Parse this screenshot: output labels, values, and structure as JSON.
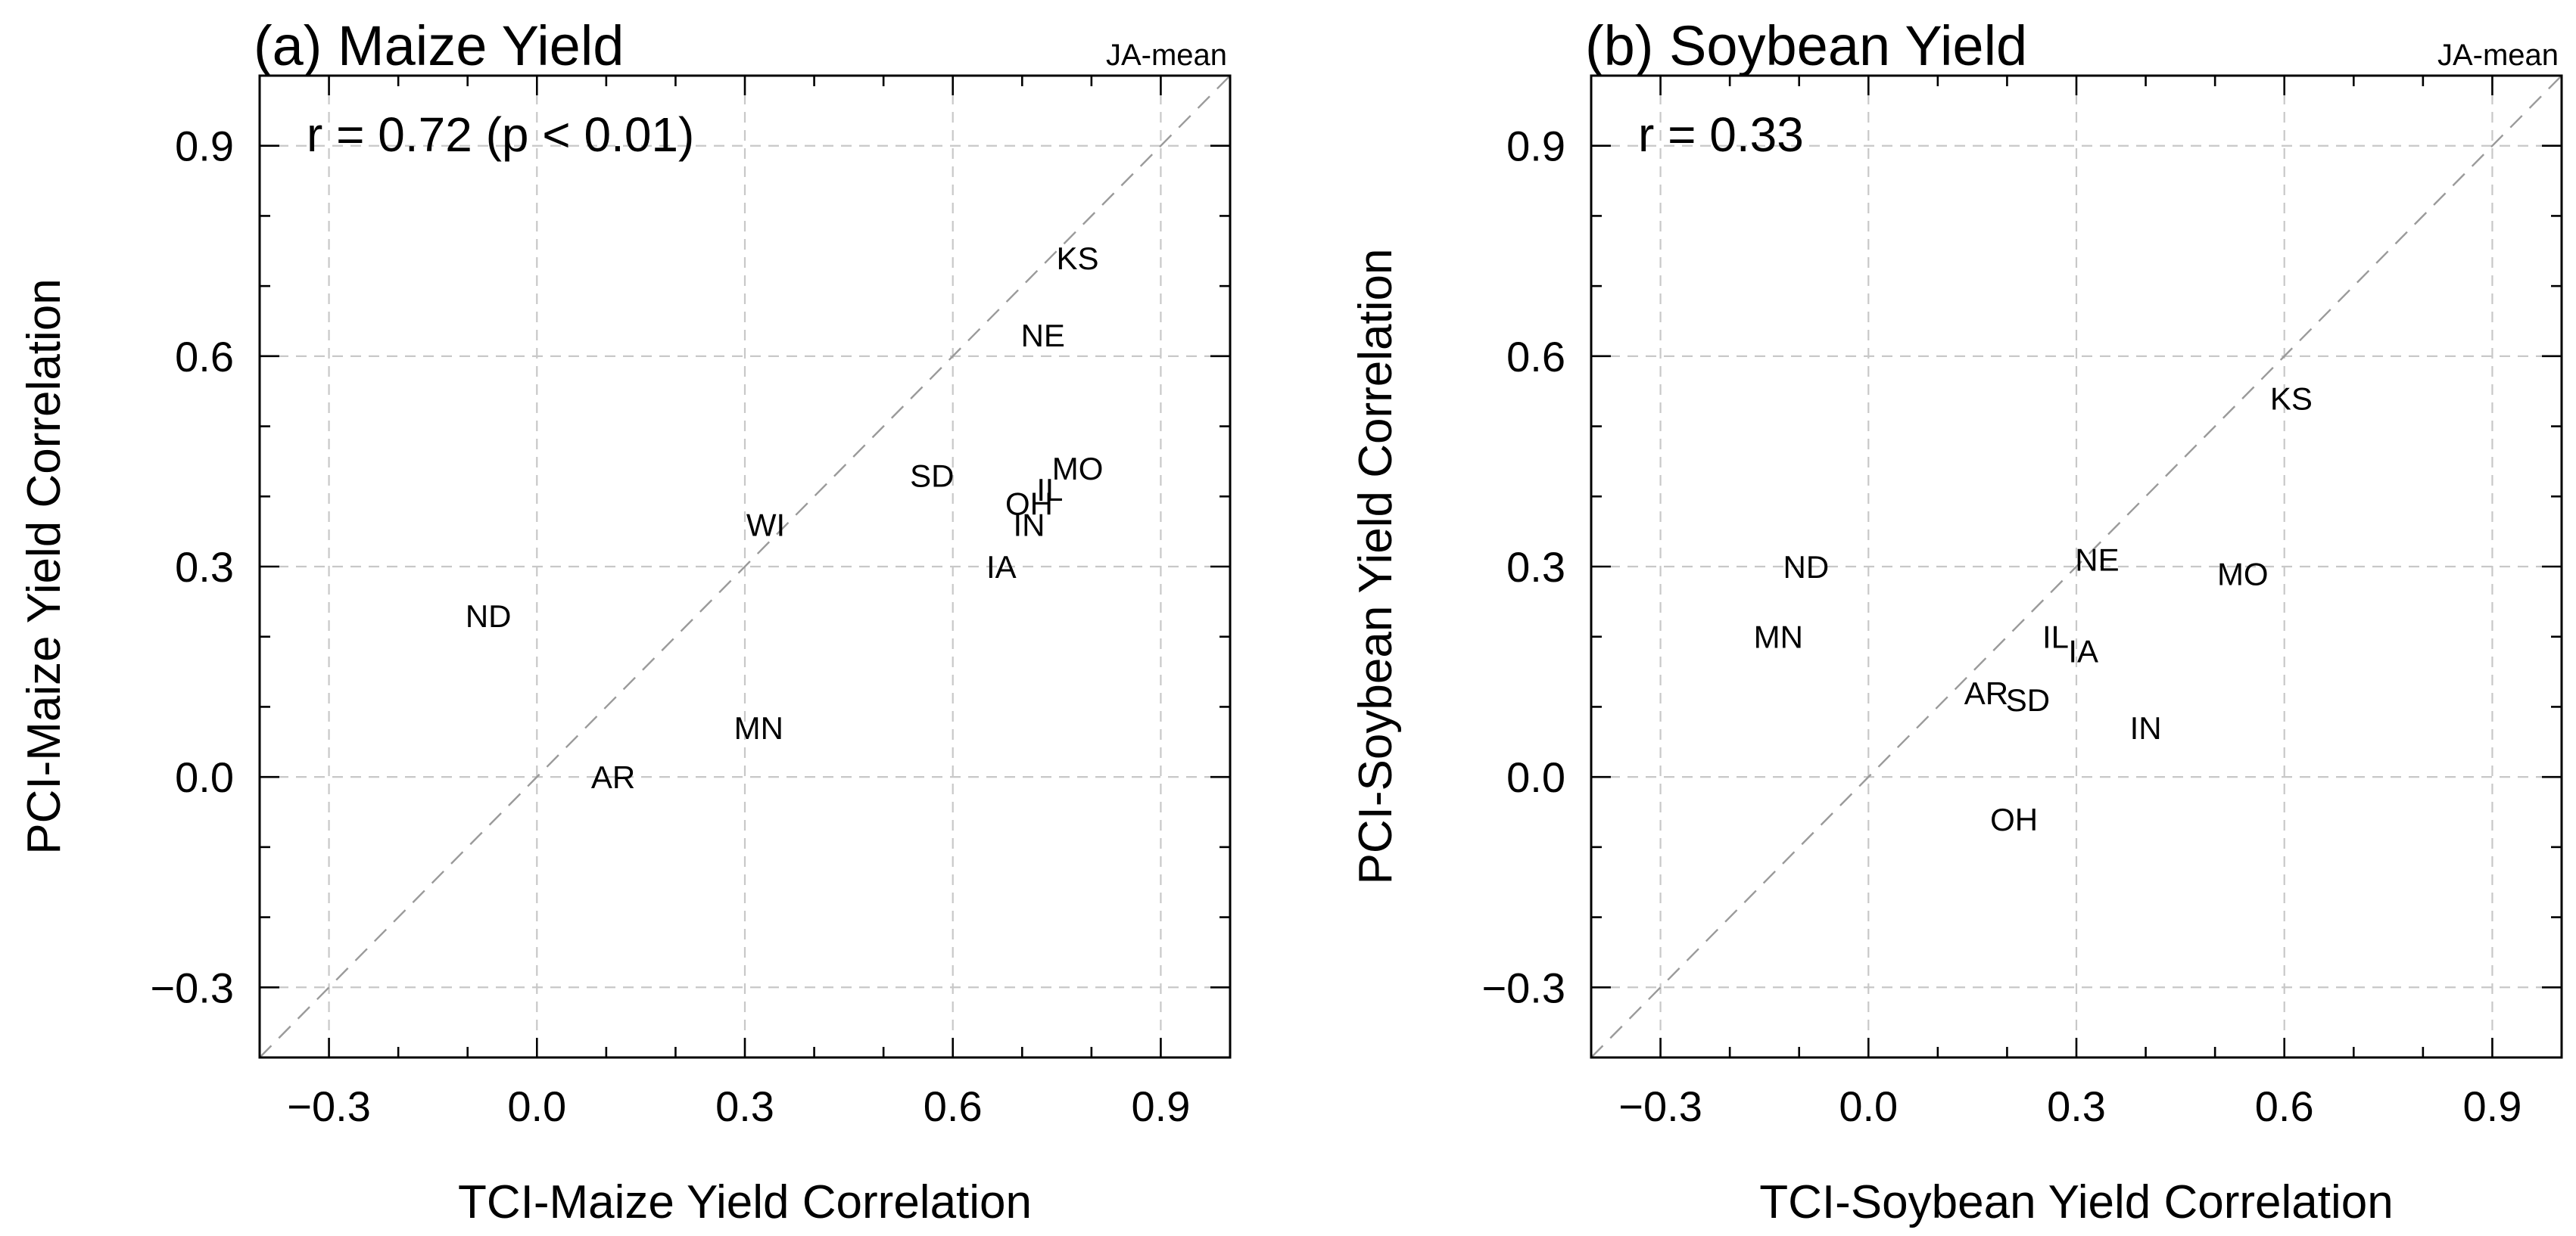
{
  "chart_data": [
    {
      "type": "scatter",
      "title": "(a) Maize Yield",
      "corner_label": "JA-mean",
      "annotation": "r = 0.72 (p < 0.01)",
      "xlabel": "TCI-Maize Yield Correlation",
      "ylabel": "PCI-Maize Yield Correlation",
      "xlim": [
        -0.4,
        1.0
      ],
      "ylim": [
        -0.4,
        1.0
      ],
      "xticks": [
        "−0.3",
        "0.0",
        "0.3",
        "0.6",
        "0.9"
      ],
      "yticks": [
        "−0.3",
        "0.0",
        "0.3",
        "0.6",
        "0.9"
      ],
      "diagonal": true,
      "points": [
        {
          "label": "KS",
          "x": 0.78,
          "y": 0.74
        },
        {
          "label": "NE",
          "x": 0.73,
          "y": 0.63
        },
        {
          "label": "MO",
          "x": 0.78,
          "y": 0.44
        },
        {
          "label": "SD",
          "x": 0.57,
          "y": 0.43
        },
        {
          "label": "IL",
          "x": 0.74,
          "y": 0.41
        },
        {
          "label": "OH",
          "x": 0.71,
          "y": 0.39
        },
        {
          "label": "IN",
          "x": 0.71,
          "y": 0.36
        },
        {
          "label": "WI",
          "x": 0.33,
          "y": 0.36
        },
        {
          "label": "IA",
          "x": 0.67,
          "y": 0.3
        },
        {
          "label": "ND",
          "x": -0.07,
          "y": 0.23
        },
        {
          "label": "MN",
          "x": 0.32,
          "y": 0.07
        },
        {
          "label": "AR",
          "x": 0.11,
          "y": 0.0
        }
      ]
    },
    {
      "type": "scatter",
      "title": "(b) Soybean Yield",
      "corner_label": "JA-mean",
      "annotation": "r = 0.33",
      "xlabel": "TCI-Soybean Yield Correlation",
      "ylabel": "PCI-Soybean Yield Correlation",
      "xlim": [
        -0.4,
        1.0
      ],
      "ylim": [
        -0.4,
        1.0
      ],
      "xticks": [
        "−0.3",
        "0.0",
        "0.3",
        "0.6",
        "0.9"
      ],
      "yticks": [
        "−0.3",
        "0.0",
        "0.3",
        "0.6",
        "0.9"
      ],
      "diagonal": true,
      "points": [
        {
          "label": "KS",
          "x": 0.61,
          "y": 0.54
        },
        {
          "label": "NE",
          "x": 0.33,
          "y": 0.31
        },
        {
          "label": "ND",
          "x": -0.09,
          "y": 0.3
        },
        {
          "label": "MO",
          "x": 0.54,
          "y": 0.29
        },
        {
          "label": "MN",
          "x": -0.13,
          "y": 0.2
        },
        {
          "label": "IL",
          "x": 0.27,
          "y": 0.2
        },
        {
          "label": "IA",
          "x": 0.31,
          "y": 0.18
        },
        {
          "label": "AR",
          "x": 0.17,
          "y": 0.12
        },
        {
          "label": "SD",
          "x": 0.23,
          "y": 0.11
        },
        {
          "label": "IN",
          "x": 0.4,
          "y": 0.07
        },
        {
          "label": "OH",
          "x": 0.21,
          "y": -0.06
        }
      ]
    }
  ]
}
